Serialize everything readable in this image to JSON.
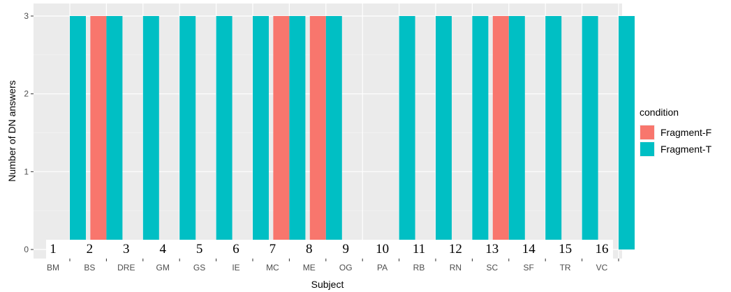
{
  "chart_data": {
    "type": "bar",
    "title": "",
    "xlabel": "Subject",
    "ylabel": "Number of DN answers",
    "ylim": [
      0,
      3
    ],
    "yticks": [
      0,
      1,
      2,
      3
    ],
    "grid": true,
    "legend_placement": "right",
    "legend_title": "condition",
    "categories": [
      "BM",
      "BS",
      "DRE",
      "GM",
      "GS",
      "IE",
      "MC",
      "ME",
      "OG",
      "PA",
      "RB",
      "RN",
      "SC",
      "SF",
      "TR",
      "VC"
    ],
    "annotations": [
      "1",
      "2",
      "3",
      "4",
      "5",
      "6",
      "7",
      "8",
      "9",
      "10",
      "11",
      "12",
      "13",
      "14",
      "15",
      "16"
    ],
    "series": [
      {
        "name": "Fragment-F",
        "color": "#F8766D",
        "values": [
          0,
          3,
          0,
          0,
          0,
          0,
          3,
          3,
          0,
          0,
          0,
          0,
          3,
          0,
          0,
          0
        ]
      },
      {
        "name": "Fragment-T",
        "color": "#00BFC4",
        "values": [
          3,
          3,
          3,
          3,
          3,
          3,
          3,
          3,
          0,
          3,
          3,
          3,
          3,
          3,
          3,
          3
        ]
      }
    ]
  }
}
